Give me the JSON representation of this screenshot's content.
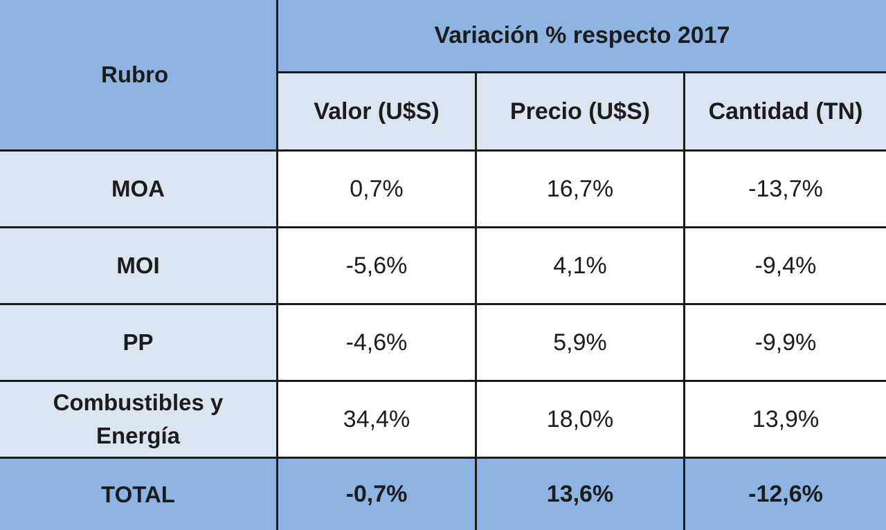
{
  "table": {
    "rubro_header": "Rubro",
    "group_header": "Variación % respecto 2017",
    "columns": [
      "Valor (U$S)",
      "Precio (U$S)",
      "Cantidad (TN)"
    ],
    "rows": [
      {
        "label": "MOA",
        "values": [
          "0,7%",
          "16,7%",
          "-13,7%"
        ]
      },
      {
        "label": "MOI",
        "values": [
          "-5,6%",
          "4,1%",
          "-9,4%"
        ]
      },
      {
        "label": "PP",
        "values": [
          "-4,6%",
          "5,9%",
          "-9,9%"
        ]
      },
      {
        "label_line1": "Combustibles y",
        "label_line2": "Energía",
        "values": [
          "34,4%",
          "18,0%",
          "13,9%"
        ]
      }
    ],
    "total": {
      "label": "TOTAL",
      "values": [
        "-0,7%",
        "13,6%",
        "-12,6%"
      ]
    }
  },
  "colors": {
    "header_blue": "#8db4e2",
    "light_blue": "#dbe5f1",
    "white": "#ffffff",
    "border": "#1a1a1a"
  }
}
